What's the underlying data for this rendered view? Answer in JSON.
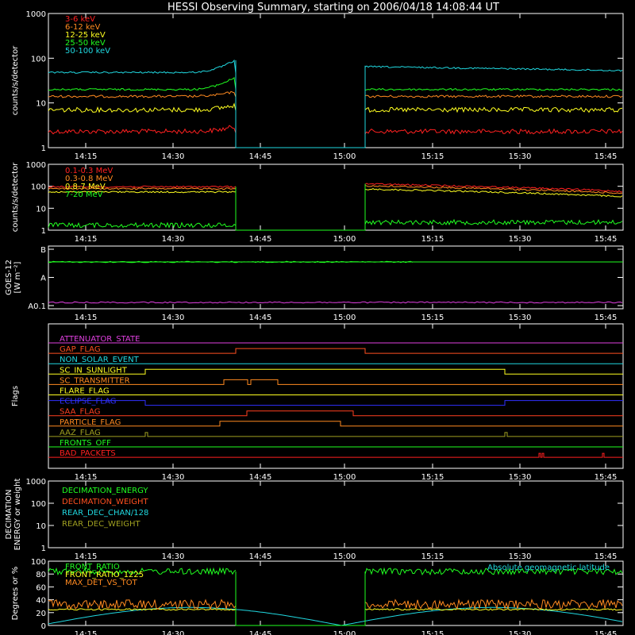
{
  "chart_data": {
    "type": "line",
    "title": "HESSI Observing Summary, starting on 2006/04/18 14:08:44 UT",
    "time_ticks": [
      "14:15",
      "14:30",
      "14:45",
      "15:00",
      "15:15",
      "15:30",
      "15:45"
    ],
    "panels": [
      {
        "id": "low-energy",
        "ylabel": "counts/s/detector",
        "yscale": "log",
        "ylim": [
          1,
          1000
        ],
        "yticks": [
          "1",
          "10",
          "100",
          "1000"
        ],
        "series": [
          {
            "name": "3-6 keV",
            "color": "#ff2020"
          },
          {
            "name": "6-12 keV",
            "color": "#ff8a20"
          },
          {
            "name": "12-25 keV",
            "color": "#ffff20"
          },
          {
            "name": "25-50 keV",
            "color": "#20ff20"
          },
          {
            "name": "50-100 keV",
            "color": "#20d8e0"
          }
        ]
      },
      {
        "id": "high-energy",
        "ylabel": "counts/s/detector",
        "yscale": "log",
        "ylim": [
          1,
          1000
        ],
        "yticks": [
          "1",
          "10",
          "100",
          "1000"
        ],
        "series": [
          {
            "name": "0.1-0.3 MeV",
            "color": "#ff2020"
          },
          {
            "name": "0.3-0.8 MeV",
            "color": "#ff8a20"
          },
          {
            "name": "0.8-7 MeV",
            "color": "#ffff20"
          },
          {
            "name": "7-20 MeV",
            "color": "#20ff20"
          }
        ]
      },
      {
        "id": "goes",
        "ylabel": "GOES-12",
        "ylabel_units": "[W m⁻²]",
        "yticks": [
          "A0.1",
          "A",
          "B"
        ]
      },
      {
        "id": "flags",
        "ylabel": "Flags",
        "flags": [
          {
            "name": "ATTENUATOR_STATE",
            "color": "#e040e0"
          },
          {
            "name": "GAP_FLAG",
            "color": "#ff5020"
          },
          {
            "name": "NON_SOLAR_EVENT",
            "color": "#20d8e0"
          },
          {
            "name": "SC_IN_SUNLIGHT",
            "color": "#ffff20"
          },
          {
            "name": "SC_TRANSMITTER",
            "color": "#ff8a20"
          },
          {
            "name": "FLARE_FLAG",
            "color": "#ffff20"
          },
          {
            "name": "ECLIPSE_FLAG",
            "color": "#3030ff"
          },
          {
            "name": "SAA_FLAG",
            "color": "#ff4020"
          },
          {
            "name": "PARTICLE_FLAG",
            "color": "#ff8a20"
          },
          {
            "name": "AAZ_FLAG",
            "color": "#a0a020"
          },
          {
            "name": "FRONTS_OFF",
            "color": "#20ff20"
          },
          {
            "name": "BAD_PACKETS",
            "color": "#ff2020"
          }
        ]
      },
      {
        "id": "decimation",
        "ylabel": "DECIMATION",
        "ylabel2": "ENERGY or weight",
        "yscale": "log",
        "ylim": [
          1,
          1000
        ],
        "yticks": [
          "1",
          "10",
          "100",
          "1000"
        ],
        "series": [
          {
            "name": "DECIMATION_ENERGY",
            "color": "#20ff20"
          },
          {
            "name": "DECIMATION_WEIGHT",
            "color": "#ff5020"
          },
          {
            "name": "REAR_DEC_CHAN/128",
            "color": "#20d8e0"
          },
          {
            "name": "REAR_DEC_WEIGHT",
            "color": "#a0a020"
          }
        ]
      },
      {
        "id": "ratio",
        "ylabel": "Degrees or %",
        "ylim": [
          0,
          100
        ],
        "yticks": [
          "0",
          "20",
          "40",
          "60",
          "80",
          "100"
        ],
        "series": [
          {
            "name": "FRONT_RATIO",
            "color": "#20ff20"
          },
          {
            "name": "FRONT_RATIO_1225",
            "color": "#ffff20"
          },
          {
            "name": "MAX_DET_VS_TOT",
            "color": "#ff8a20"
          }
        ],
        "right_label": {
          "name": "Absolute geomagnetic latitude",
          "color": "#20d8e0"
        }
      }
    ]
  }
}
